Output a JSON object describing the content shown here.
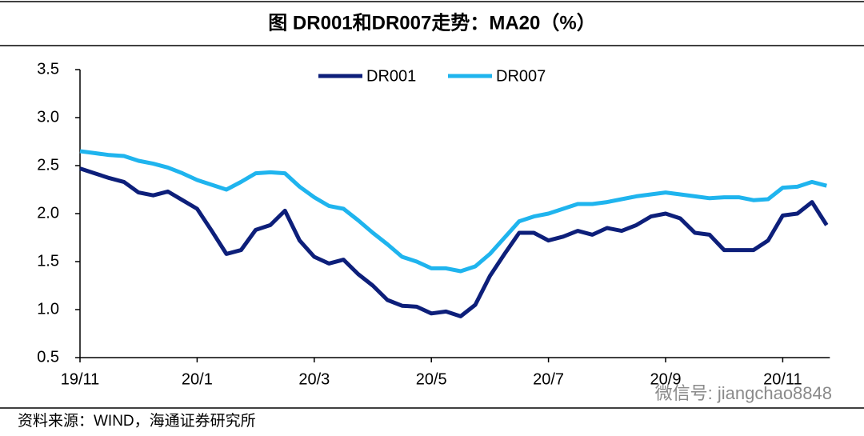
{
  "chart_data": {
    "type": "line",
    "title": "图 DR001和DR007走势：MA20（%）",
    "source": "资料来源：WIND，海通证券研究所",
    "watermark": "微信号: jiangchao8848",
    "categories": [
      "19/11",
      null,
      null,
      null,
      null,
      null,
      null,
      null,
      "20/1",
      null,
      null,
      null,
      null,
      null,
      null,
      null,
      "20/3",
      null,
      null,
      null,
      null,
      null,
      null,
      null,
      "20/5",
      null,
      null,
      null,
      null,
      null,
      null,
      null,
      "20/7",
      null,
      null,
      null,
      null,
      null,
      null,
      null,
      "20/9",
      null,
      null,
      null,
      null,
      null,
      null,
      null,
      "20/11",
      null,
      null,
      null
    ],
    "series": [
      {
        "name": "DR001",
        "color": "#0d1f7a",
        "values": [
          2.47,
          2.42,
          2.37,
          2.33,
          2.22,
          2.19,
          2.23,
          2.14,
          2.05,
          1.82,
          1.58,
          1.62,
          1.83,
          1.88,
          2.03,
          1.72,
          1.55,
          1.48,
          1.52,
          1.37,
          1.25,
          1.1,
          1.04,
          1.03,
          0.96,
          0.98,
          0.93,
          1.05,
          1.35,
          1.58,
          1.8,
          1.8,
          1.72,
          1.76,
          1.82,
          1.78,
          1.85,
          1.82,
          1.88,
          1.97,
          2.0,
          1.95,
          1.8,
          1.78,
          1.62,
          1.62,
          1.62,
          1.72,
          1.98,
          2.0,
          2.12,
          1.88
        ]
      },
      {
        "name": "DR007",
        "color": "#1fb4ee",
        "values": [
          2.65,
          2.63,
          2.61,
          2.6,
          2.55,
          2.52,
          2.48,
          2.42,
          2.35,
          2.3,
          2.25,
          2.33,
          2.42,
          2.43,
          2.42,
          2.28,
          2.17,
          2.08,
          2.05,
          1.93,
          1.8,
          1.68,
          1.55,
          1.5,
          1.43,
          1.43,
          1.4,
          1.45,
          1.58,
          1.75,
          1.92,
          1.97,
          2.0,
          2.05,
          2.1,
          2.1,
          2.12,
          2.15,
          2.18,
          2.2,
          2.22,
          2.2,
          2.18,
          2.16,
          2.17,
          2.17,
          2.14,
          2.15,
          2.27,
          2.28,
          2.33,
          2.29
        ]
      }
    ],
    "ylim": [
      0.5,
      3.5
    ],
    "yticks": [
      0.5,
      {
        "value": 1,
        "label": "1.0"
      },
      1.5,
      {
        "value": 2,
        "label": "2.0"
      },
      2.5,
      {
        "value": 3,
        "label": "3.0"
      },
      3.5
    ],
    "grid": false,
    "legend": "top"
  }
}
